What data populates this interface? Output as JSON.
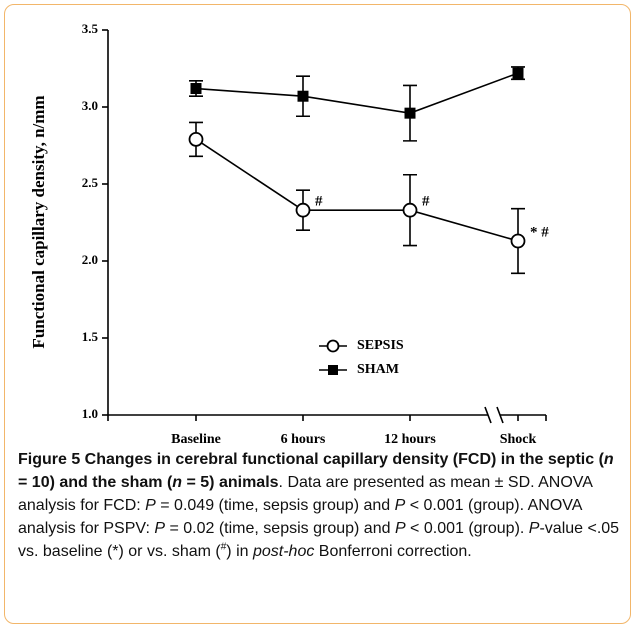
{
  "chart_data": {
    "type": "line",
    "ylabel": "Functional capillary density, n/mm",
    "categories": [
      "Baseline",
      "6 hours",
      "12 hours",
      "Shock"
    ],
    "series": [
      {
        "name": "SEPSIS",
        "color": "#000000",
        "marker": "open-circle",
        "values": [
          2.79,
          2.33,
          2.33,
          2.13
        ],
        "errors": [
          0.11,
          0.13,
          0.23,
          0.21
        ]
      },
      {
        "name": "SHAM",
        "color": "#000000",
        "marker": "filled-square",
        "values": [
          3.12,
          3.07,
          2.96,
          3.22
        ],
        "errors": [
          0.05,
          0.13,
          0.18,
          0.04
        ]
      }
    ],
    "annotations": [
      "#",
      "#",
      "* #"
    ],
    "ylim": [
      1.0,
      3.5
    ],
    "yticks": [
      {
        "value": 1.0,
        "label": "1.0"
      },
      {
        "value": 1.5,
        "label": "1.5"
      },
      {
        "value": 2.0,
        "label": "2.0"
      },
      {
        "value": 2.5,
        "label": "2.5"
      },
      {
        "value": 3.0,
        "label": "3.0"
      },
      {
        "value": 3.5,
        "label": "3.5"
      }
    ],
    "legend": "lower-center",
    "grid": false
  },
  "caption": [
    {
      "text": "Figure 5 Changes in cerebral functional capillary density (FCD) in the septic (",
      "style": "b"
    },
    {
      "text": "n",
      "style": "bi"
    },
    {
      "text": " = 10) and the sham (",
      "style": "b"
    },
    {
      "text": "n",
      "style": "bi"
    },
    {
      "text": " = 5) animals",
      "style": "b"
    },
    {
      "text": ". Data are presented as mean ± SD. ANOVA analysis for FCD: ",
      "style": "r"
    },
    {
      "text": "P",
      "style": "i"
    },
    {
      "text": " = 0.049 (time, sepsis group) and ",
      "style": "r"
    },
    {
      "text": "P",
      "style": "i"
    },
    {
      "text": " < 0.001 (group). ANOVA analysis for PSPV: ",
      "style": "r"
    },
    {
      "text": "P",
      "style": "i"
    },
    {
      "text": " = 0.02 (time, sepsis group) and ",
      "style": "r"
    },
    {
      "text": "P",
      "style": "i"
    },
    {
      "text": " < 0.001 (group). ",
      "style": "r"
    },
    {
      "text": "P",
      "style": "i"
    },
    {
      "text": "-value <.05 vs. baseline (*) or vs. sham (",
      "style": "r"
    },
    {
      "text": "#",
      "style": "sup"
    },
    {
      "text": ") in ",
      "style": "r"
    },
    {
      "text": "post-hoc",
      "style": "i"
    },
    {
      "text": " Bonferroni correction.",
      "style": "r"
    }
  ]
}
